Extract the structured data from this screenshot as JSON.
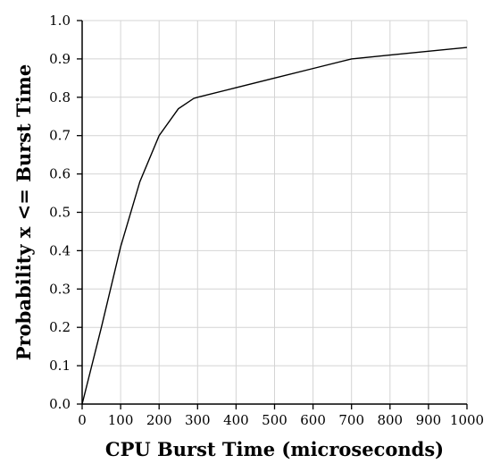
{
  "chart_data": {
    "type": "line",
    "title": "",
    "xlabel": "CPU Burst Time (microseconds)",
    "ylabel": "Probability x <= Burst Time",
    "xlim": [
      0,
      1000
    ],
    "ylim": [
      0,
      1.0
    ],
    "x_ticks": [
      "0",
      "100",
      "200",
      "300",
      "400",
      "500",
      "600",
      "700",
      "800",
      "900",
      "1000"
    ],
    "y_ticks": [
      "0.0",
      "0.1",
      "0.2",
      "0.3",
      "0.4",
      "0.5",
      "0.6",
      "0.7",
      "0.8",
      "0.9",
      "1.0"
    ],
    "grid": true,
    "legend": "none",
    "series": [
      {
        "x": [
          0,
          50,
          100,
          150,
          200,
          250,
          290,
          300,
          400,
          500,
          600,
          700,
          800,
          900,
          1000
        ],
        "y": [
          0,
          0.2,
          0.41,
          0.58,
          0.7,
          0.77,
          0.797,
          0.8,
          0.825,
          0.85,
          0.875,
          0.9,
          0.91,
          0.92,
          0.93
        ]
      }
    ]
  }
}
